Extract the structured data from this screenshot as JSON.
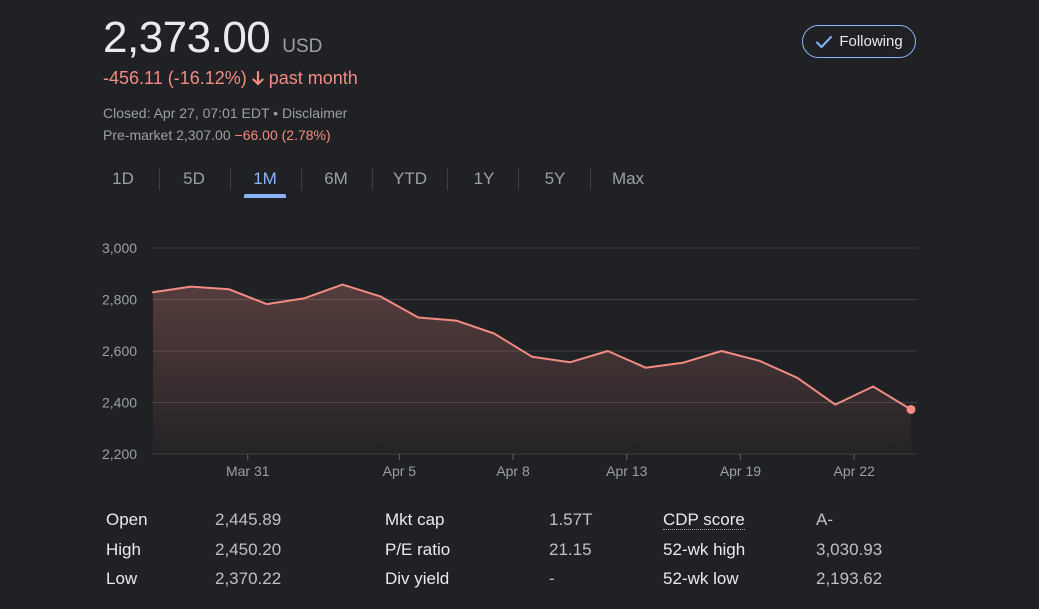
{
  "quote": {
    "price": "2,373.00",
    "currency": "USD",
    "change": "-456.11 (-16.12%)",
    "change_period": "past month",
    "closed_text": "Closed: Apr 27, 07:01 EDT • Disclaimer",
    "premarket_prefix": "Pre-market 2,307.00 ",
    "premarket_change": "−66.00 (2.78%)",
    "negative_color": "#f28b82"
  },
  "follow_button": {
    "label": "Following",
    "icon": "check-icon",
    "accent": "#8ab4f8"
  },
  "tabs": [
    {
      "label": "1D",
      "active": false
    },
    {
      "label": "5D",
      "active": false
    },
    {
      "label": "1M",
      "active": true
    },
    {
      "label": "6M",
      "active": false
    },
    {
      "label": "YTD",
      "active": false
    },
    {
      "label": "1Y",
      "active": false
    },
    {
      "label": "5Y",
      "active": false
    },
    {
      "label": "Max",
      "active": false
    }
  ],
  "chart_data": {
    "type": "area",
    "ylim": [
      2200,
      3000
    ],
    "yticks": [
      "3,000",
      "2,800",
      "2,600",
      "2,400",
      "2,200"
    ],
    "ytick_values": [
      3000,
      2800,
      2600,
      2400,
      2200
    ],
    "xtick_labels": [
      "Mar 31",
      "Apr 5",
      "Apr 8",
      "Apr 13",
      "Apr 19",
      "Apr 22"
    ],
    "xtick_indices": [
      2.5,
      6.5,
      9.5,
      12.5,
      15.5,
      18.5
    ],
    "grid": true,
    "line_color": "#f28b82",
    "series": [
      {
        "values": [
          2828,
          2850,
          2840,
          2782,
          2805,
          2858,
          2812,
          2730,
          2718,
          2668,
          2578,
          2556,
          2600,
          2535,
          2555,
          2600,
          2562,
          2496,
          2392,
          2462,
          2373
        ]
      }
    ]
  },
  "stats": [
    {
      "label": "Open",
      "value": "2,445.89",
      "dotted": false
    },
    {
      "label": "High",
      "value": "2,450.20",
      "dotted": false
    },
    {
      "label": "Low",
      "value": "2,370.22",
      "dotted": false
    },
    {
      "label": "Mkt cap",
      "value": "1.57T",
      "dotted": false
    },
    {
      "label": "P/E ratio",
      "value": "21.15",
      "dotted": false
    },
    {
      "label": "Div yield",
      "value": "-",
      "dotted": false
    },
    {
      "label": "CDP score",
      "value": "A-",
      "dotted": true
    },
    {
      "label": "52-wk high",
      "value": "3,030.93",
      "dotted": false
    },
    {
      "label": "52-wk low",
      "value": "2,193.62",
      "dotted": false
    }
  ]
}
